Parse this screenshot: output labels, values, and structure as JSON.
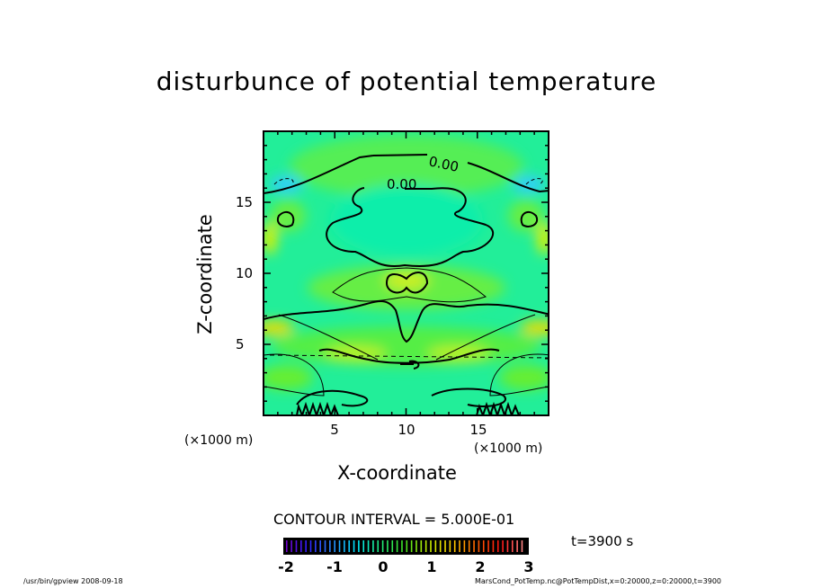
{
  "chart_data": {
    "type": "heatmap",
    "subtype": "contour",
    "title": "disturbunce of potential temperature",
    "xlabel": "X-coordinate",
    "ylabel": "Z-coordinate",
    "x_unit_label": "(×1000 m)",
    "y_unit_label": "(×1000 m)",
    "xlim": [
      0,
      20
    ],
    "ylim": [
      0,
      20
    ],
    "xticks": [
      5,
      10,
      15
    ],
    "yticks": [
      5,
      10,
      15
    ],
    "contour_interval_text": "CONTOUR INTERVAL = 5.000E-01",
    "contour_interval": 0.5,
    "contour_labels": [
      "0.00",
      "0.00"
    ],
    "colorbar": {
      "range": [
        -2,
        3
      ],
      "ticks": [
        "-2",
        "-1",
        "0",
        "1",
        "2",
        "3"
      ],
      "colors": [
        "#7a00c8",
        "#3020ff",
        "#2a8cff",
        "#00e8ff",
        "#20f080",
        "#40e020",
        "#c8f000",
        "#ffd000",
        "#ff6000",
        "#ff1010",
        "#ff9090"
      ]
    },
    "time_label": "t=3900 s",
    "field_notes": "approximately symmetric field, mostly 0 to 0.5, warm bands near z=4-7 and z=9-10, cool cores near (1,17) and (19,17)"
  },
  "footer": {
    "left": "/usr/bin/gpview   2008-09-18",
    "right": "MarsCond_PotTemp.nc@PotTempDist,x=0:20000,z=0:20000,t=3900"
  }
}
